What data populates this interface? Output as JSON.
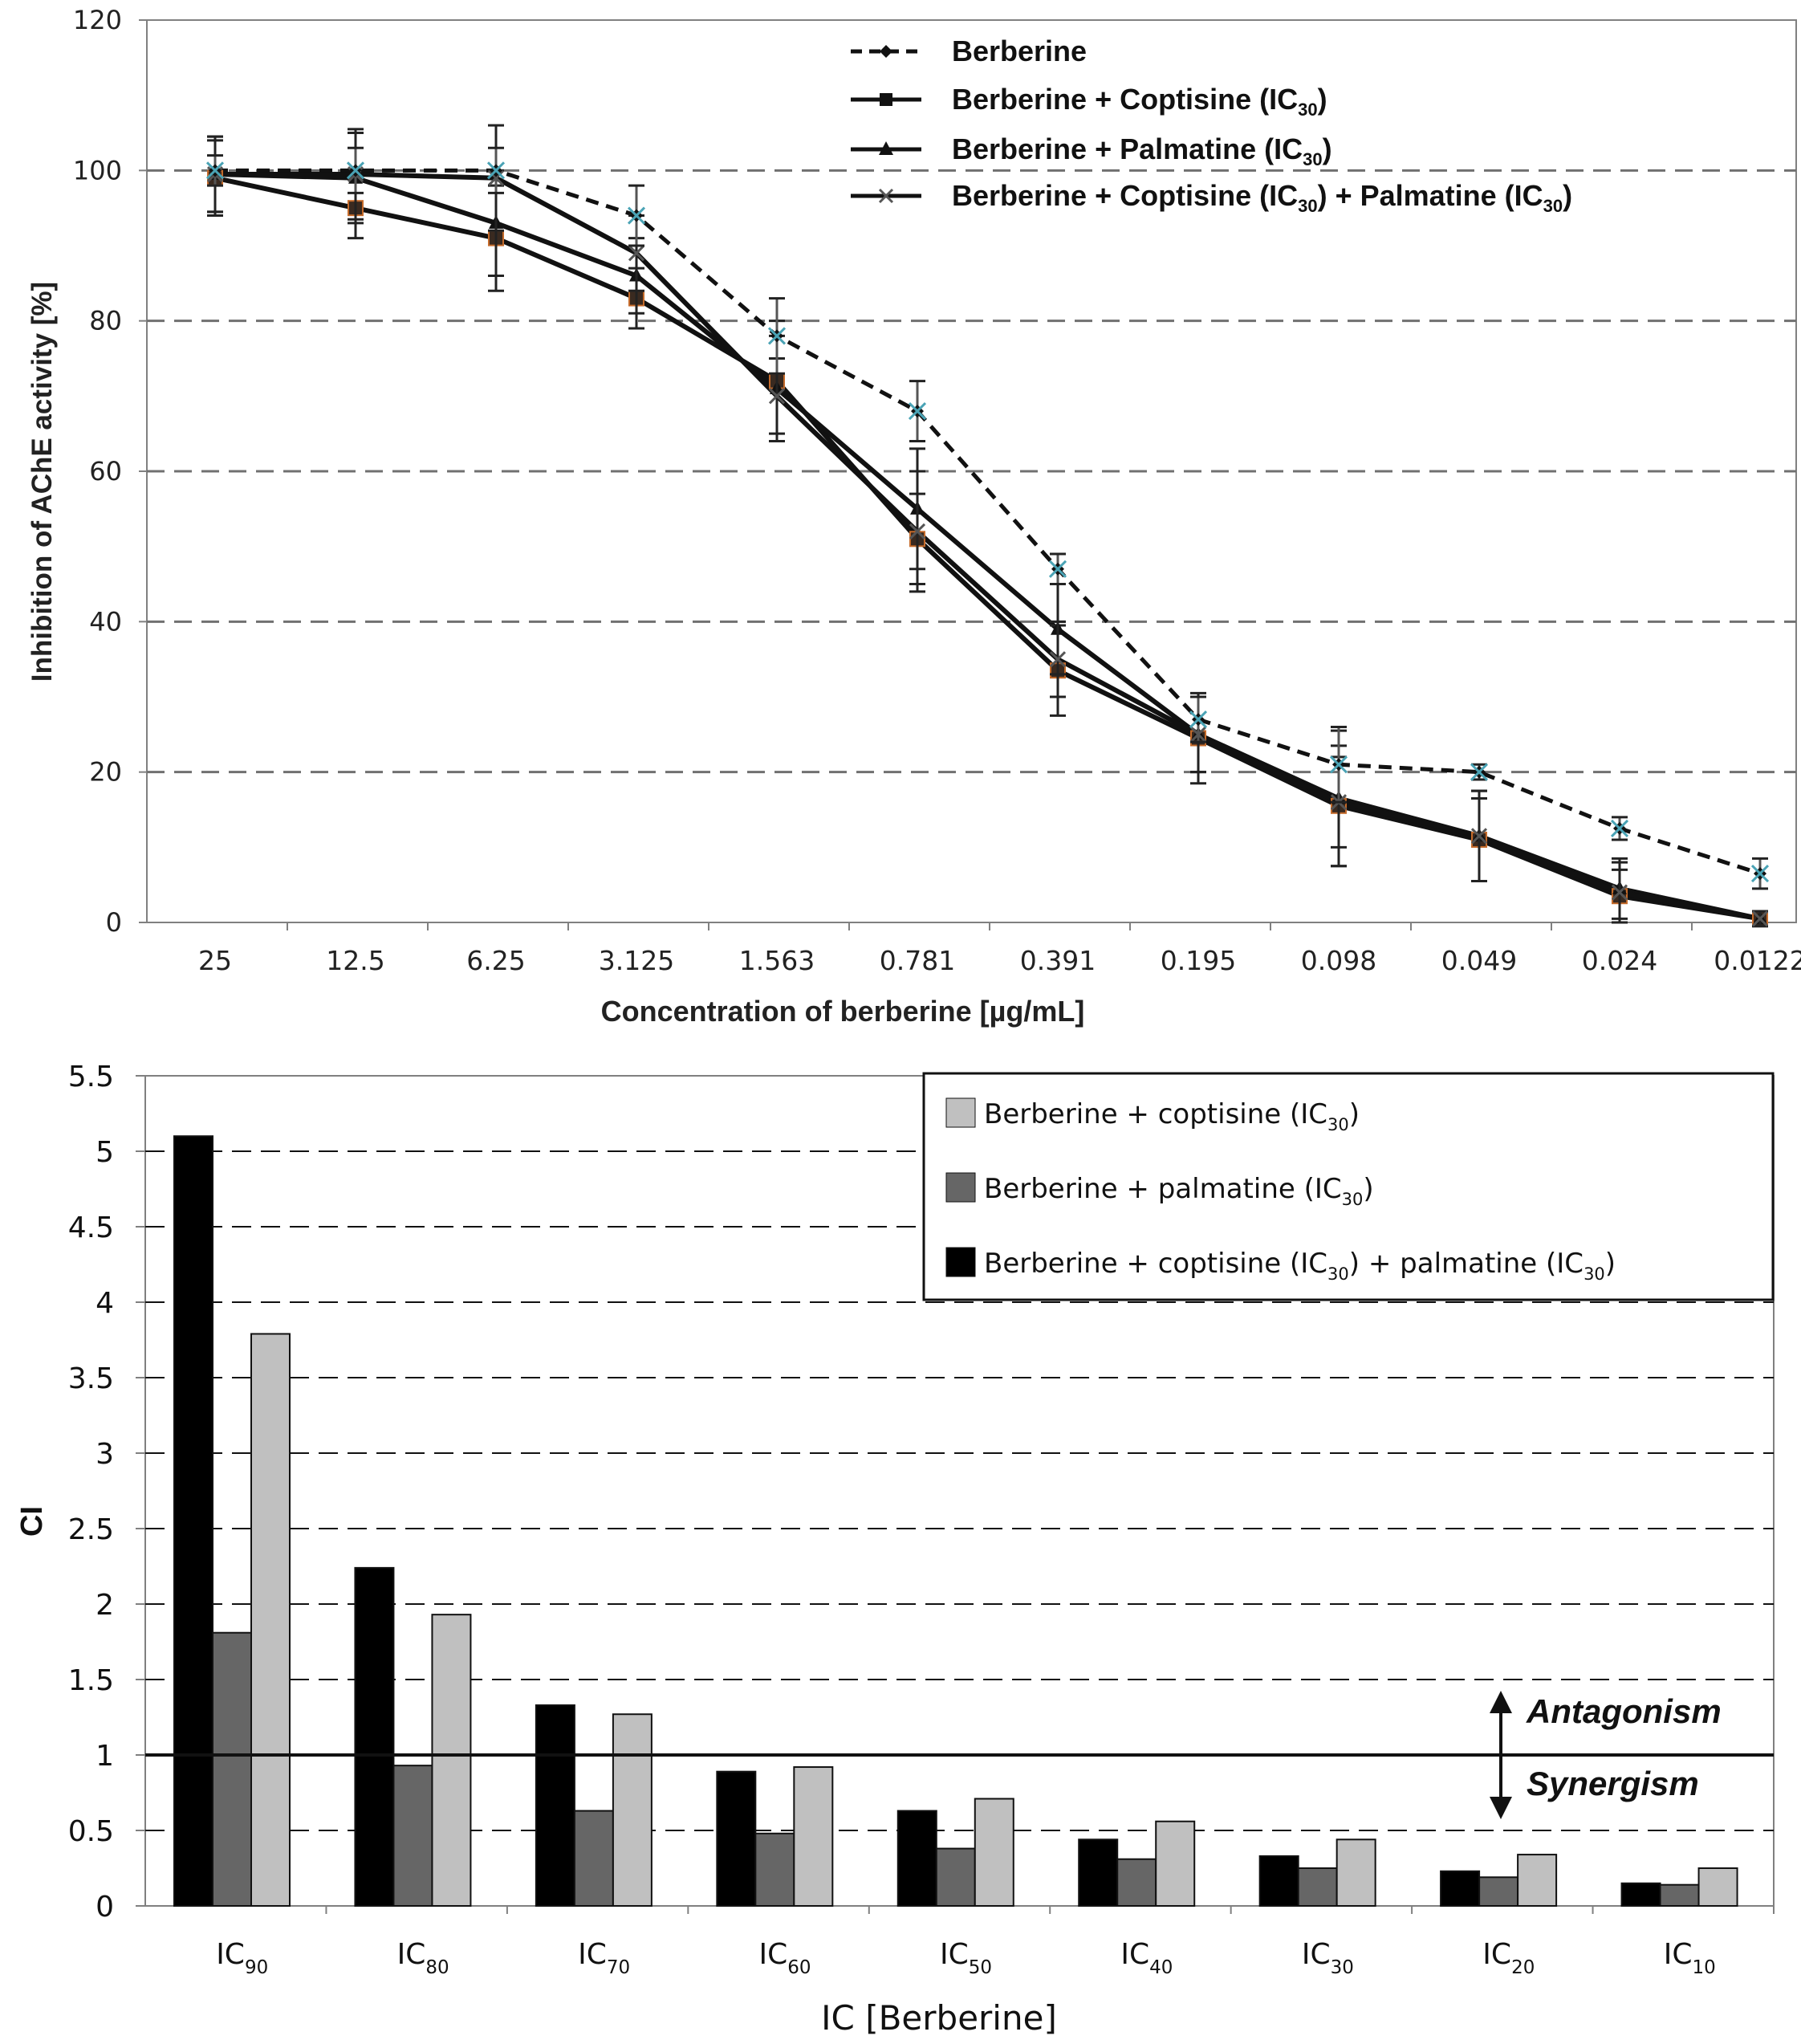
{
  "chart_data": [
    {
      "type": "line",
      "title": "",
      "xlabel": "Concentration of berberine [µg/mL]",
      "ylabel": "Inhibition of AChE activity [%]",
      "categories": [
        "25",
        "12.5",
        "6.25",
        "3.125",
        "1.563",
        "0.781",
        "0.391",
        "0.195",
        "0.098",
        "0.049",
        "0.024",
        "0.0122"
      ],
      "yticks": [
        "0",
        "20",
        "40",
        "60",
        "80",
        "100",
        "120"
      ],
      "ylim": [
        0,
        120
      ],
      "grid": "dashed-horizontal",
      "legend_position": "top-right",
      "series": [
        {
          "name": "Berberine",
          "line_style": "dashed",
          "marker": "diamond",
          "values": [
            100,
            100,
            100,
            94,
            78,
            68,
            47,
            27,
            21,
            20,
            12.5,
            6.5
          ],
          "errors": [
            2,
            3,
            3,
            4,
            5,
            4,
            2,
            3,
            5,
            1,
            1.5,
            2
          ]
        },
        {
          "name": "Berberine + Coptisine (IC30)",
          "line_style": "solid",
          "marker": "square",
          "values": [
            99,
            95,
            91,
            83,
            72,
            51,
            33.5,
            24.5,
            15.5,
            11,
            3.5,
            0.5
          ],
          "errors": [
            5,
            4,
            7,
            4,
            8,
            6,
            6,
            6,
            8,
            5.5,
            3.5,
            1
          ]
        },
        {
          "name": "Berberine + Palmatine (IC30)",
          "line_style": "solid",
          "marker": "triangle",
          "values": [
            99.5,
            99,
            93,
            86,
            71,
            55,
            39,
            25,
            16.5,
            11.5,
            4.5,
            0.5
          ],
          "errors": [
            5,
            6,
            7,
            5,
            7,
            8,
            6,
            5,
            9,
            6,
            4,
            1
          ]
        },
        {
          "name": "Berberine + Coptisine (IC30) + Palmatine (IC30)",
          "line_style": "solid",
          "marker": "x",
          "values": [
            99.5,
            99.5,
            99,
            89,
            70,
            52,
            35,
            25,
            16,
            11.5,
            4,
            0.5
          ],
          "errors": [
            5,
            6,
            7,
            5,
            5,
            8,
            5,
            5,
            6,
            6,
            4,
            1
          ]
        }
      ],
      "legend": [
        {
          "main": "Berberine",
          "sub1": "",
          "mid": "",
          "sub2": "",
          "end": ""
        },
        {
          "main": "Berberine + Coptisine (IC",
          "sub1": "30",
          "mid": ")",
          "sub2": "",
          "end": ""
        },
        {
          "main": "Berberine + Palmatine (IC",
          "sub1": "30",
          "mid": ")",
          "sub2": "",
          "end": ""
        },
        {
          "main": "Berberine + Coptisine (IC",
          "sub1": "30",
          "mid": ") + Palmatine (IC",
          "sub2": "30",
          "end": ")"
        }
      ]
    },
    {
      "type": "bar",
      "title": "",
      "xlabel": "IC [Berberine]",
      "ylabel": "CI",
      "categories": [
        {
          "base": "IC",
          "sub": "90"
        },
        {
          "base": "IC",
          "sub": "80"
        },
        {
          "base": "IC",
          "sub": "70"
        },
        {
          "base": "IC",
          "sub": "60"
        },
        {
          "base": "IC",
          "sub": "50"
        },
        {
          "base": "IC",
          "sub": "40"
        },
        {
          "base": "IC",
          "sub": "30"
        },
        {
          "base": "IC",
          "sub": "20"
        },
        {
          "base": "IC",
          "sub": "10"
        }
      ],
      "yticks": [
        "0",
        "0.5",
        "1",
        "1.5",
        "2",
        "2.5",
        "3",
        "3.5",
        "4",
        "4.5",
        "5",
        "5.5"
      ],
      "ylim": [
        0,
        5.5
      ],
      "grid": "dashed-horizontal",
      "reference_line": 1,
      "legend_position": "top-right",
      "series": [
        {
          "name": "Berberine + coptisine (IC30) + palmatine (IC30)",
          "color": "#000000",
          "values": [
            5.1,
            2.24,
            1.33,
            0.89,
            0.63,
            0.44,
            0.33,
            0.23,
            0.15
          ]
        },
        {
          "name": "Berberine + palmatine (IC30)",
          "color": "#666666",
          "values": [
            1.81,
            0.93,
            0.63,
            0.48,
            0.38,
            0.31,
            0.25,
            0.19,
            0.14
          ]
        },
        {
          "name": "Berberine + coptisine (IC30)",
          "color": "#c0c0c0",
          "values": [
            3.79,
            1.93,
            1.27,
            0.92,
            0.71,
            0.56,
            0.44,
            0.34,
            0.25
          ]
        }
      ],
      "legend": [
        {
          "color": "#c0c0c0",
          "main": "Berberine + coptisine (IC",
          "sub1": "30",
          "mid": ")",
          "sub2": "",
          "end": ""
        },
        {
          "color": "#666666",
          "main": "Berberine + palmatine (IC",
          "sub1": "30",
          "mid": ")",
          "sub2": "",
          "end": ""
        },
        {
          "color": "#000000",
          "main": "Berberine + coptisine (IC",
          "sub1": "30",
          "mid": ") + palmatine (IC",
          "sub2": "30",
          "end": ")"
        }
      ],
      "annotations": {
        "antagonism": "Antagonism",
        "synergism": "Synergism"
      }
    }
  ]
}
